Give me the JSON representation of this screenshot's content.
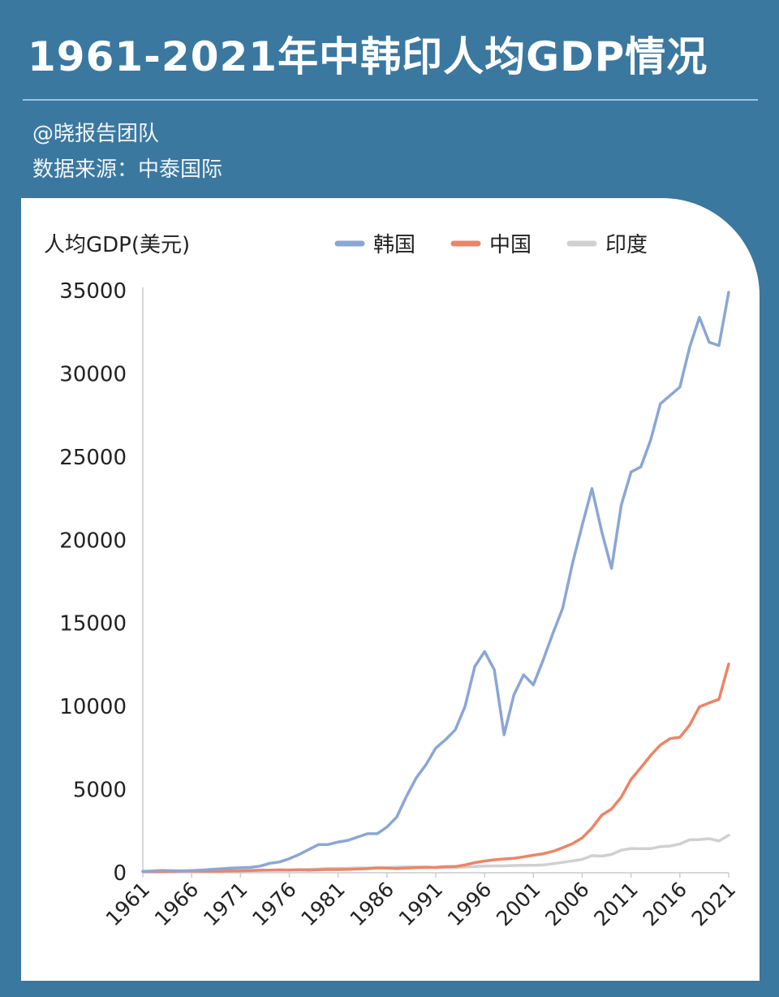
{
  "header": {
    "title": "1961-2021年中韩印人均GDP情况",
    "author": "@晓报告团队",
    "source": "数据来源：中泰国际"
  },
  "colors": {
    "background": "#3a78a0",
    "korea": "#8aa6d6",
    "china": "#ee8466",
    "india": "#d0d0d0",
    "axis": "#cccccc",
    "text": "#222222"
  },
  "chart_data": {
    "type": "line",
    "ylabel": "人均GDP(美元)",
    "ylim": [
      0,
      35000
    ],
    "yticks": [
      0,
      5000,
      10000,
      15000,
      20000,
      25000,
      30000,
      35000
    ],
    "xlim": [
      1961,
      2021
    ],
    "xticks": [
      1961,
      1966,
      1971,
      1976,
      1981,
      1986,
      1991,
      1996,
      2001,
      2006,
      2011,
      2016,
      2021
    ],
    "grid": false,
    "legend_position": "top",
    "series": [
      {
        "name": "韩国",
        "color": "#8aa6d6",
        "x": [
          1961,
          1962,
          1963,
          1964,
          1965,
          1966,
          1967,
          1968,
          1969,
          1970,
          1971,
          1972,
          1973,
          1974,
          1975,
          1976,
          1977,
          1978,
          1979,
          1980,
          1981,
          1982,
          1983,
          1984,
          1985,
          1986,
          1987,
          1988,
          1989,
          1990,
          1991,
          1992,
          1993,
          1994,
          1995,
          1996,
          1997,
          1998,
          1999,
          2000,
          2001,
          2002,
          2003,
          2004,
          2005,
          2006,
          2007,
          2008,
          2009,
          2010,
          2011,
          2012,
          2013,
          2014,
          2015,
          2016,
          2017,
          2018,
          2019,
          2020,
          2021
        ],
        "values": [
          90,
          105,
          140,
          120,
          110,
          130,
          160,
          200,
          240,
          280,
          300,
          320,
          400,
          570,
          650,
          850,
          1100,
          1400,
          1700,
          1700,
          1850,
          1950,
          2150,
          2350,
          2350,
          2750,
          3350,
          4600,
          5700,
          6500,
          7500,
          8000,
          8600,
          10000,
          12400,
          13300,
          12200,
          8300,
          10700,
          11900,
          11300,
          12800,
          14400,
          15900,
          18600,
          20900,
          23100,
          20500,
          18300,
          22100,
          24100,
          24400,
          26000,
          28200,
          28700,
          29200,
          31600,
          33400,
          31900,
          31700,
          34900
        ]
      },
      {
        "name": "中国",
        "color": "#ee8466",
        "x": [
          1961,
          1962,
          1963,
          1964,
          1965,
          1966,
          1967,
          1968,
          1969,
          1970,
          1971,
          1972,
          1973,
          1974,
          1975,
          1976,
          1977,
          1978,
          1979,
          1980,
          1981,
          1982,
          1983,
          1984,
          1985,
          1986,
          1987,
          1988,
          1989,
          1990,
          1991,
          1992,
          1993,
          1994,
          1995,
          1996,
          1997,
          1998,
          1999,
          2000,
          2001,
          2002,
          2003,
          2004,
          2005,
          2006,
          2007,
          2008,
          2009,
          2010,
          2011,
          2012,
          2013,
          2014,
          2015,
          2016,
          2017,
          2018,
          2019,
          2020,
          2021
        ],
        "values": [
          75,
          70,
          74,
          85,
          98,
          104,
          96,
          91,
          100,
          113,
          119,
          132,
          157,
          160,
          178,
          165,
          185,
          156,
          184,
          195,
          197,
          203,
          225,
          250,
          294,
          282,
          252,
          284,
          311,
          318,
          333,
          366,
          377,
          473,
          610,
          709,
          782,
          829,
          873,
          959,
          1053,
          1149,
          1289,
          1509,
          1753,
          2099,
          2694,
          3468,
          3832,
          4550,
          5618,
          6317,
          7051,
          7679,
          8067,
          8148,
          8880,
          9977,
          10217,
          10434,
          12556
        ]
      },
      {
        "name": "印度",
        "color": "#d0d0d0",
        "x": [
          1961,
          1962,
          1963,
          1964,
          1965,
          1966,
          1967,
          1968,
          1969,
          1970,
          1971,
          1972,
          1973,
          1974,
          1975,
          1976,
          1977,
          1978,
          1979,
          1980,
          1981,
          1982,
          1983,
          1984,
          1985,
          1986,
          1987,
          1988,
          1989,
          1990,
          1991,
          1992,
          1993,
          1994,
          1995,
          1996,
          1997,
          1998,
          1999,
          2000,
          2001,
          2002,
          2003,
          2004,
          2005,
          2006,
          2007,
          2008,
          2009,
          2010,
          2011,
          2012,
          2013,
          2014,
          2015,
          2016,
          2017,
          2018,
          2019,
          2020,
          2021
        ],
        "values": [
          85,
          90,
          100,
          115,
          120,
          90,
          95,
          100,
          105,
          112,
          118,
          122,
          142,
          163,
          158,
          161,
          186,
          203,
          224,
          266,
          270,
          274,
          291,
          276,
          296,
          310,
          340,
          354,
          346,
          368,
          303,
          316,
          301,
          346,
          374,
          400,
          415,
          413,
          441,
          443,
          452,
          470,
          546,
          627,
          714,
          806,
          1028,
          999,
          1102,
          1358,
          1458,
          1444,
          1450,
          1574,
          1606,
          1733,
          1981,
          1997,
          2050,
          1913,
          2257
        ]
      }
    ]
  }
}
